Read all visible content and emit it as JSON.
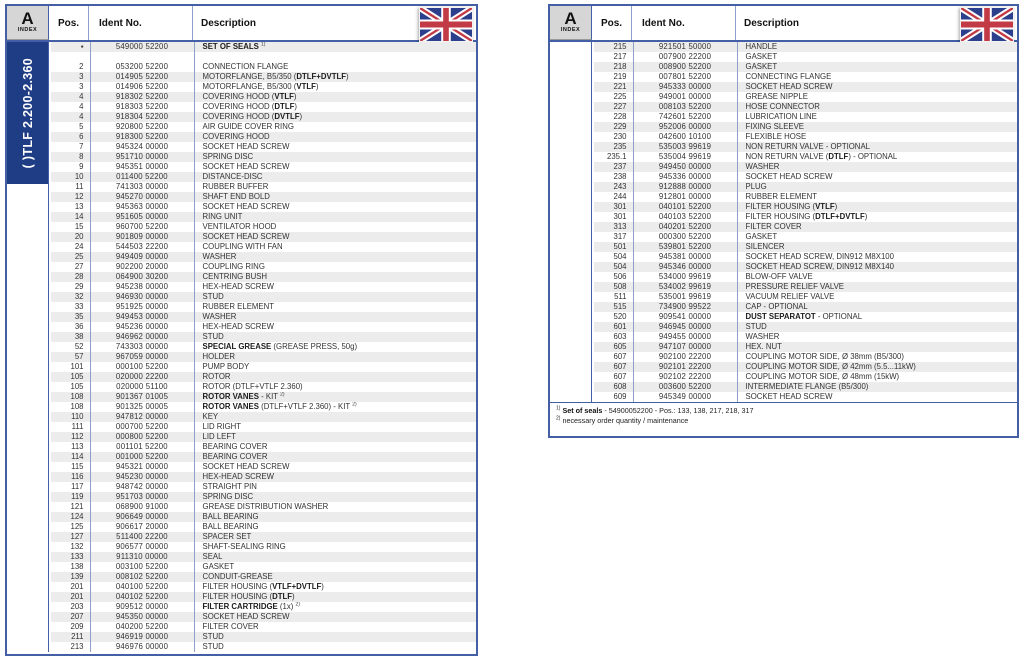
{
  "page": {
    "index_badge": {
      "letter": "A",
      "label": "INDEX"
    },
    "columns": {
      "pos": "Pos.",
      "ident": "Ident No.",
      "description": "Description"
    },
    "sidebar_label": "( )TLF 2.200-2.360",
    "flag_icon": "uk-flag",
    "colors": {
      "border_blue": "#445fa6",
      "divider_blue": "#8fa0cd",
      "sidebar_navy": "#1f3d85",
      "stripe_gray": "#ececec",
      "flag_navy": "#2c3f8c",
      "flag_red": "#c23a46"
    }
  },
  "left_table": {
    "rows": [
      {
        "pos": "▪",
        "ident": "549000 52200",
        "desc": "**SET OF SEALS** ^1)^"
      },
      {
        "blank": true
      },
      {
        "pos": "2",
        "ident": "053200 52200",
        "desc": "CONNECTION FLANGE"
      },
      {
        "pos": "3",
        "ident": "014905 52200",
        "desc": "MOTORFLANGE, B5/350 (**DTLF+DVTLF**)"
      },
      {
        "pos": "3",
        "ident": "014906 52200",
        "desc": "MOTORFLANGE, B5/300 (**VTLF**)"
      },
      {
        "pos": "4",
        "ident": "918302 52200",
        "desc": "COVERING HOOD (**VTLF**)"
      },
      {
        "pos": "4",
        "ident": "918303 52200",
        "desc": "COVERING HOOD (**DTLF**)"
      },
      {
        "pos": "4",
        "ident": "918304 52200",
        "desc": "COVERING HOOD (**DVTLF**)"
      },
      {
        "pos": "5",
        "ident": "920800 52200",
        "desc": "AIR GUIDE COVER RING"
      },
      {
        "pos": "6",
        "ident": "918300 52200",
        "desc": "COVERING HOOD"
      },
      {
        "pos": "7",
        "ident": "945324 00000",
        "desc": "SOCKET HEAD SCREW"
      },
      {
        "pos": "8",
        "ident": "951710 00000",
        "desc": "SPRING DISC"
      },
      {
        "pos": "9",
        "ident": "945351 00000",
        "desc": "SOCKET HEAD SCREW"
      },
      {
        "pos": "10",
        "ident": "011400 52200",
        "desc": "DISTANCE-DISC"
      },
      {
        "pos": "11",
        "ident": "741303 00000",
        "desc": "RUBBER BUFFER"
      },
      {
        "pos": "12",
        "ident": "945270 00000",
        "desc": "SHAFT END BOLD"
      },
      {
        "pos": "13",
        "ident": "945363 00000",
        "desc": "SOCKET HEAD SCREW"
      },
      {
        "pos": "14",
        "ident": "951605 00000",
        "desc": "RING UNIT"
      },
      {
        "pos": "15",
        "ident": "960700 52200",
        "desc": "VENTILATOR HOOD"
      },
      {
        "pos": "20",
        "ident": "901809 00000",
        "desc": "SOCKET HEAD SCREW"
      },
      {
        "pos": "24",
        "ident": "544503 22200",
        "desc": "COUPLING WITH FAN"
      },
      {
        "pos": "25",
        "ident": "949409 00000",
        "desc": "WASHER"
      },
      {
        "pos": "27",
        "ident": "902200 20000",
        "desc": "COUPLING RING"
      },
      {
        "pos": "28",
        "ident": "064900 30200",
        "desc": "CENTRING BUSH"
      },
      {
        "pos": "29",
        "ident": "945238 00000",
        "desc": "HEX-HEAD SCREW"
      },
      {
        "pos": "32",
        "ident": "946930 00000",
        "desc": "STUD"
      },
      {
        "pos": "33",
        "ident": "951925 00000",
        "desc": "RUBBER ELEMENT"
      },
      {
        "pos": "35",
        "ident": "949453 00000",
        "desc": "WASHER"
      },
      {
        "pos": "36",
        "ident": "945236 00000",
        "desc": "HEX-HEAD SCREW"
      },
      {
        "pos": "38",
        "ident": "946962 00000",
        "desc": "STUD"
      },
      {
        "pos": "52",
        "ident": "743303 00000",
        "desc": "**SPECIAL GREASE** (GREASE PRESS, 50g)"
      },
      {
        "pos": "57",
        "ident": "967059 00000",
        "desc": "HOLDER"
      },
      {
        "pos": "101",
        "ident": "000100 52200",
        "desc": "PUMP BODY"
      },
      {
        "pos": "105",
        "ident": "020000 22200",
        "desc": "ROTOR"
      },
      {
        "pos": "105",
        "ident": "020000 51100",
        "desc": "ROTOR (DTLF+VTLF 2.360)"
      },
      {
        "pos": "108",
        "ident": "901367 01005",
        "desc": "**ROTOR VANES** - KIT ^2)^"
      },
      {
        "pos": "108",
        "ident": "901325 00005",
        "desc": "**ROTOR VANES** (DTLF+VTLF 2.360) - KIT ^2)^"
      },
      {
        "pos": "110",
        "ident": "947812 00000",
        "desc": "KEY"
      },
      {
        "pos": "111",
        "ident": "000700 52200",
        "desc": "LID RIGHT"
      },
      {
        "pos": "112",
        "ident": "000800 52200",
        "desc": "LID LEFT"
      },
      {
        "pos": "113",
        "ident": "001101 52200",
        "desc": "BEARING COVER"
      },
      {
        "pos": "114",
        "ident": "001000 52200",
        "desc": "BEARING COVER"
      },
      {
        "pos": "115",
        "ident": "945321 00000",
        "desc": "SOCKET HEAD SCREW"
      },
      {
        "pos": "116",
        "ident": "945230 00000",
        "desc": "HEX-HEAD SCREW"
      },
      {
        "pos": "117",
        "ident": "948742 00000",
        "desc": "STRAIGHT PIN"
      },
      {
        "pos": "119",
        "ident": "951703 00000",
        "desc": "SPRING DISC"
      },
      {
        "pos": "121",
        "ident": "068900 91000",
        "desc": "GREASE DISTRIBUTION WASHER"
      },
      {
        "pos": "124",
        "ident": "906649 00000",
        "desc": "BALL BEARING"
      },
      {
        "pos": "125",
        "ident": "906617 20000",
        "desc": "BALL BEARING"
      },
      {
        "pos": "127",
        "ident": "511400 22200",
        "desc": "SPACER SET"
      },
      {
        "pos": "132",
        "ident": "906577 00000",
        "desc": "SHAFT-SEALING RING"
      },
      {
        "pos": "133",
        "ident": "911310 00000",
        "desc": "SEAL"
      },
      {
        "pos": "138",
        "ident": "003100 52200",
        "desc": "GASKET"
      },
      {
        "pos": "139",
        "ident": "008102 52200",
        "desc": "CONDUIT-GREASE"
      },
      {
        "pos": "201",
        "ident": "040100 52200",
        "desc": "FILTER HOUSING (**VTLF+DVTLF**)"
      },
      {
        "pos": "201",
        "ident": "040102 52200",
        "desc": "FILTER HOUSING (**DTLF**)"
      },
      {
        "pos": "203",
        "ident": "909512 00000",
        "desc": "**FILTER CARTRIDGE** (1x) ^2)^"
      },
      {
        "pos": "207",
        "ident": "945350 00000",
        "desc": "SOCKET HEAD SCREW"
      },
      {
        "pos": "209",
        "ident": "040200 52200",
        "desc": "FILTER COVER"
      },
      {
        "pos": "211",
        "ident": "946919 00000",
        "desc": "STUD"
      },
      {
        "pos": "213",
        "ident": "946976 00000",
        "desc": "STUD"
      }
    ]
  },
  "right_table": {
    "rows": [
      {
        "pos": "215",
        "ident": "921501 50000",
        "desc": "HANDLE"
      },
      {
        "pos": "217",
        "ident": "007900 22200",
        "desc": "GASKET"
      },
      {
        "pos": "218",
        "ident": "008900 52200",
        "desc": "GASKET"
      },
      {
        "pos": "219",
        "ident": "007801 52200",
        "desc": "CONNECTING FLANGE"
      },
      {
        "pos": "221",
        "ident": "945333 00000",
        "desc": "SOCKET HEAD SCREW"
      },
      {
        "pos": "225",
        "ident": "949001 00000",
        "desc": "GREASE NIPPLE"
      },
      {
        "pos": "227",
        "ident": "008103 52200",
        "desc": "HOSE CONNECTOR"
      },
      {
        "pos": "228",
        "ident": "742601 52200",
        "desc": "LUBRICATION LINE"
      },
      {
        "pos": "229",
        "ident": "952006 00000",
        "desc": "FIXING SLEEVE"
      },
      {
        "pos": "230",
        "ident": "042600 10100",
        "desc": "FLEXIBLE HOSE"
      },
      {
        "pos": "235",
        "ident": "535003 99619",
        "desc": "NON RETURN VALVE - OPTIONAL"
      },
      {
        "pos": "235.1",
        "ident": "535004 99619",
        "desc": "NON RETURN VALVE (**DTLF**) - OPTIONAL"
      },
      {
        "pos": "237",
        "ident": "949450 00000",
        "desc": "WASHER"
      },
      {
        "pos": "238",
        "ident": "945336 00000",
        "desc": "SOCKET HEAD SCREW"
      },
      {
        "pos": "243",
        "ident": "912888 00000",
        "desc": "PLUG"
      },
      {
        "pos": "244",
        "ident": "912801 00000",
        "desc": "RUBBER ELEMENT"
      },
      {
        "pos": "301",
        "ident": "040101 52200",
        "desc": "FILTER HOUSING (**VTLF**)"
      },
      {
        "pos": "301",
        "ident": "040103 52200",
        "desc": "FILTER HOUSING (**DTLF+DVTLF**)"
      },
      {
        "pos": "313",
        "ident": "040201 52200",
        "desc": "FILTER COVER"
      },
      {
        "pos": "317",
        "ident": "000300 52200",
        "desc": "GASKET"
      },
      {
        "pos": "501",
        "ident": "539801 52200",
        "desc": "SILENCER"
      },
      {
        "pos": "504",
        "ident": "945381 00000",
        "desc": "SOCKET HEAD SCREW, DIN912 M8X100"
      },
      {
        "pos": "504",
        "ident": "945346 00000",
        "desc": "SOCKET HEAD SCREW, DIN912 M8X140"
      },
      {
        "pos": "506",
        "ident": "534000 99619",
        "desc": "BLOW-OFF VALVE"
      },
      {
        "pos": "508",
        "ident": "534002 99619",
        "desc": "PRESSURE RELIEF VALVE"
      },
      {
        "pos": "511",
        "ident": "535001 99619",
        "desc": "VACUUM RELIEF VALVE"
      },
      {
        "pos": "515",
        "ident": "734900 99522",
        "desc": "CAP - OPTIONAL"
      },
      {
        "pos": "520",
        "ident": "909541 00000",
        "desc": "**DUST SEPARATOT** - OPTIONAL"
      },
      {
        "pos": "601",
        "ident": "946945 00000",
        "desc": "STUD"
      },
      {
        "pos": "603",
        "ident": "949455 00000",
        "desc": "WASHER"
      },
      {
        "pos": "605",
        "ident": "947107 00000",
        "desc": "HEX. NUT"
      },
      {
        "pos": "607",
        "ident": "902100 22200",
        "desc": "COUPLING MOTOR SIDE, Ø 38mm (B5/300)"
      },
      {
        "pos": "607",
        "ident": "902101 22200",
        "desc": "COUPLING MOTOR SIDE, Ø 42mm (5.5...11kW)"
      },
      {
        "pos": "607",
        "ident": "902102 22200",
        "desc": "COUPLING MOTOR SIDE, Ø 48mm (15kW)"
      },
      {
        "pos": "608",
        "ident": "003600 52200",
        "desc": "INTERMEDIATE FLANGE (B5/300)"
      },
      {
        "pos": "609",
        "ident": "945349 00000",
        "desc": "SOCKET HEAD SCREW"
      }
    ],
    "footnotes": [
      "^1)^ **Set of seals** - 54900052200 - Pos.: 133, 138, 217, 218, 317",
      "^2)^ necessary order quantity / maintenance"
    ]
  }
}
